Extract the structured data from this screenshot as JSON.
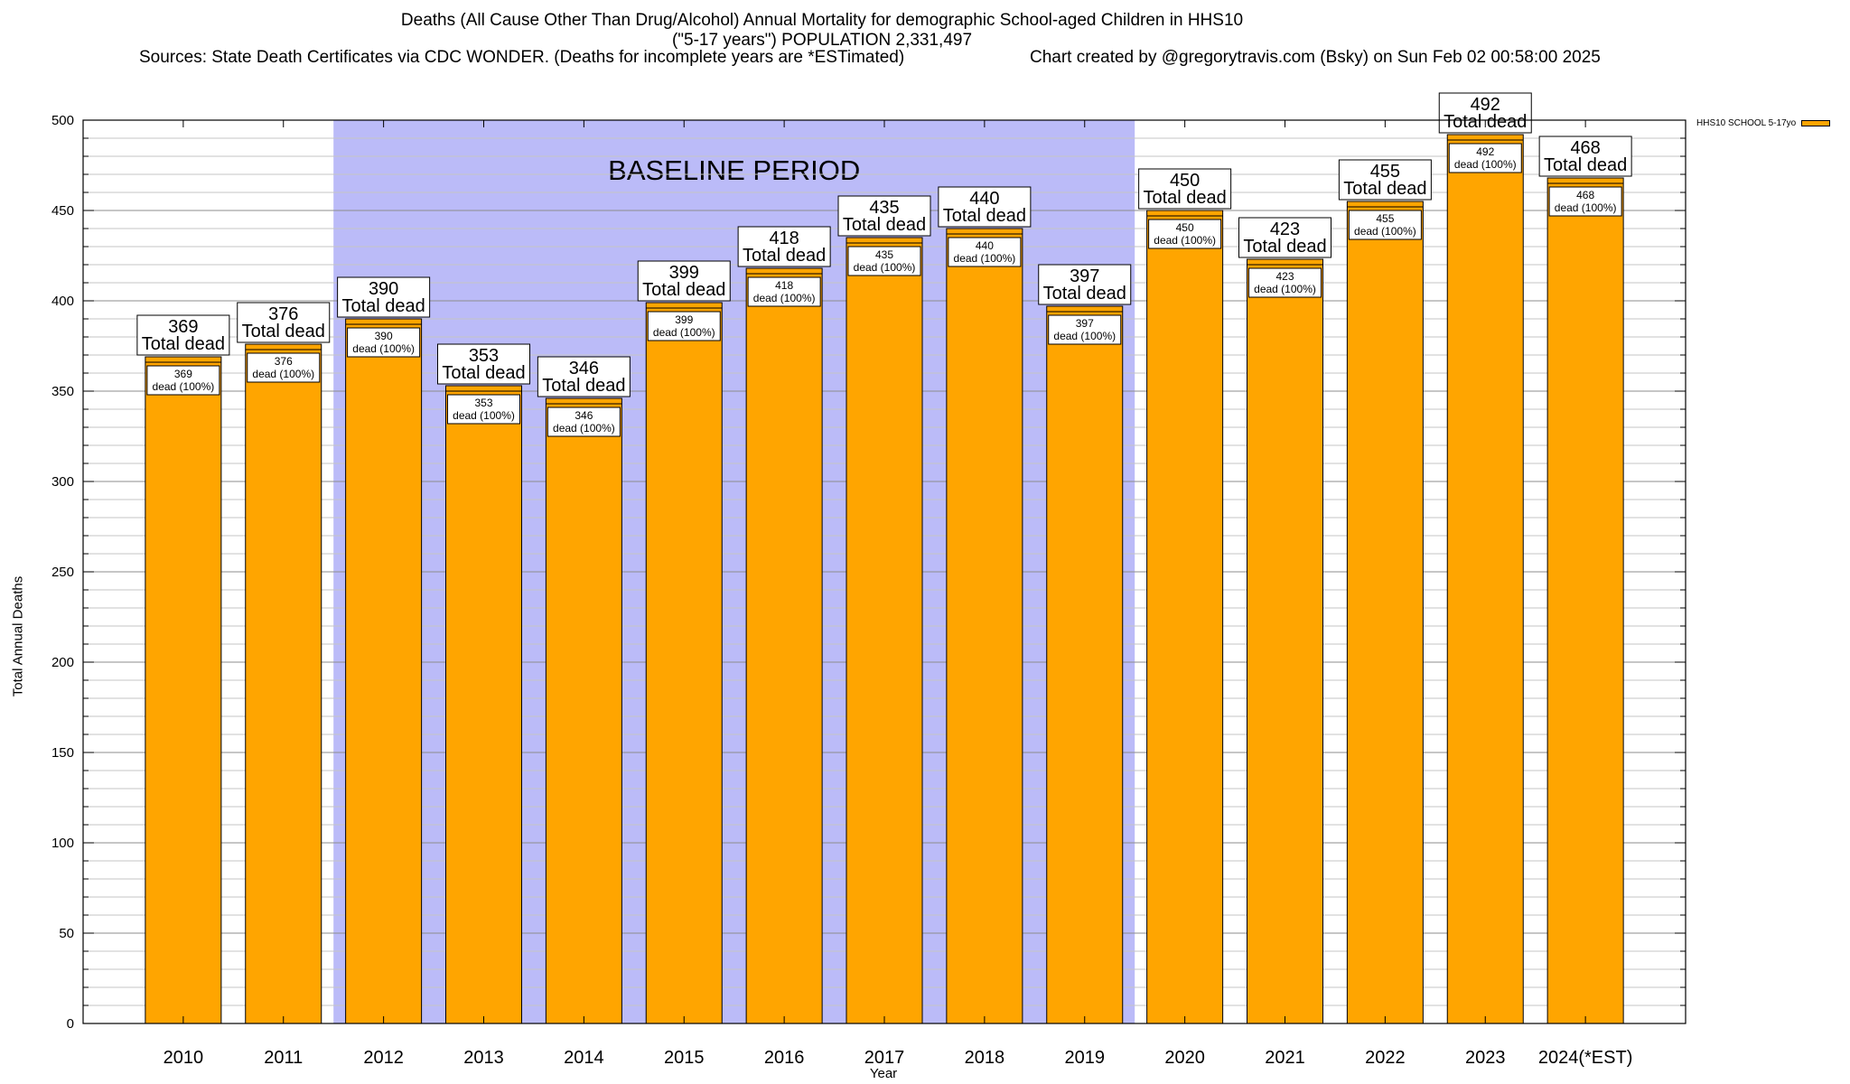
{
  "title_lines": [
    "Deaths (All Cause Other Than Drug/Alcohol) Annual Mortality for demographic School-aged Children in HHS10",
    "(\"5-17 years\") POPULATION 2,331,497"
  ],
  "sources": "Sources: State Death Certificates via CDC WONDER. (Deaths for incomplete years are *ESTimated)",
  "credit": "Chart created by @gregorytravis.com (Bsky) on Sun Feb 02 00:58:00 2025",
  "colors": {
    "bar": "#FFA500",
    "baseline_band": "#BBBBF8",
    "grid": "#9a9a9a"
  },
  "chart_data": {
    "type": "bar",
    "xlabel": "Year",
    "ylabel": "Total Annual Deaths",
    "ylim": [
      0,
      500
    ],
    "yticks": [
      0,
      50,
      100,
      150,
      200,
      250,
      300,
      350,
      400,
      450,
      500
    ],
    "categories": [
      "2010",
      "2011",
      "2012",
      "2013",
      "2014",
      "2015",
      "2016",
      "2017",
      "2018",
      "2019",
      "2020",
      "2021",
      "2022",
      "2023",
      "2024(*EST)"
    ],
    "series": [
      {
        "name": "HHS10 SCHOOL 5-17yo",
        "values": [
          369,
          376,
          390,
          353,
          346,
          399,
          418,
          435,
          440,
          397,
          450,
          423,
          455,
          492,
          468
        ]
      }
    ],
    "total_label": "Total dead",
    "inner_label": "dead (100%)",
    "baseline": {
      "label": "BASELINE PERIOD",
      "from": "2012",
      "to": "2019"
    },
    "legend_position": "top-right",
    "grid": true
  }
}
